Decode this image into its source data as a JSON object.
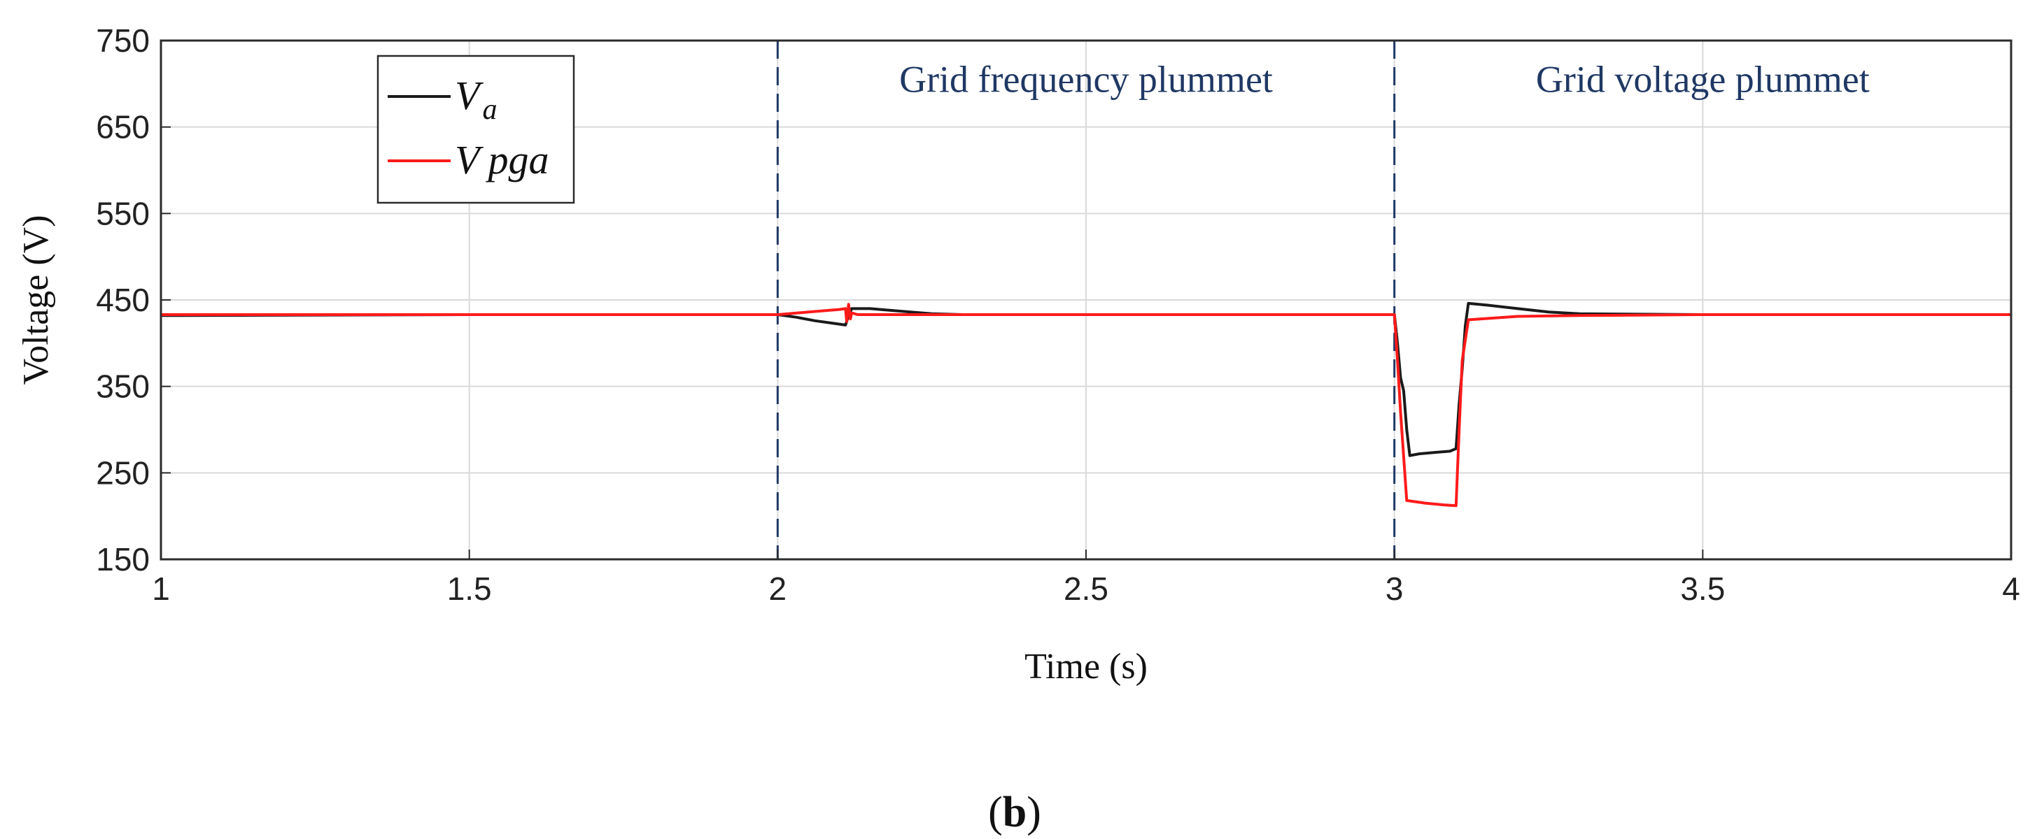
{
  "chart_data": {
    "type": "line",
    "title": "",
    "xlabel": "Time (s)",
    "ylabel": "Voltage (V)",
    "xlim": [
      1,
      4
    ],
    "ylim": [
      150,
      750
    ],
    "xticks": [
      1,
      1.5,
      2,
      2.5,
      3,
      3.5,
      4
    ],
    "xtick_labels": [
      "1",
      "1.5",
      "2",
      "2.5",
      "3",
      "3.5",
      "4"
    ],
    "yticks": [
      150,
      250,
      350,
      450,
      550,
      650,
      750
    ],
    "ytick_labels": [
      "150",
      "250",
      "350",
      "450",
      "550",
      "650",
      "750"
    ],
    "grid": true,
    "legend_position": "top-left",
    "event_lines": [
      2,
      3
    ],
    "annotations": [
      {
        "text": "Grid frequency plummet",
        "x": 2.5,
        "y": 705
      },
      {
        "text": "Grid voltage plummet",
        "x": 3.5,
        "y": 705
      }
    ],
    "series": [
      {
        "name": "V_a",
        "label_main": "V",
        "label_sub": "a",
        "color": "#1a1a1a",
        "points": [
          [
            1.0,
            432
          ],
          [
            1.5,
            433
          ],
          [
            2.0,
            433
          ],
          [
            2.03,
            430
          ],
          [
            2.06,
            426
          ],
          [
            2.09,
            423
          ],
          [
            2.11,
            421
          ],
          [
            2.115,
            432
          ],
          [
            2.12,
            440
          ],
          [
            2.15,
            440
          ],
          [
            2.2,
            437
          ],
          [
            2.25,
            434
          ],
          [
            2.3,
            433
          ],
          [
            2.5,
            433
          ],
          [
            3.0,
            433
          ],
          [
            3.005,
            400
          ],
          [
            3.01,
            360
          ],
          [
            3.015,
            345
          ],
          [
            3.02,
            300
          ],
          [
            3.025,
            270
          ],
          [
            3.04,
            272
          ],
          [
            3.07,
            274
          ],
          [
            3.09,
            275
          ],
          [
            3.1,
            278
          ],
          [
            3.105,
            330
          ],
          [
            3.11,
            370
          ],
          [
            3.115,
            420
          ],
          [
            3.12,
            446
          ],
          [
            3.15,
            444
          ],
          [
            3.2,
            440
          ],
          [
            3.25,
            436
          ],
          [
            3.3,
            434
          ],
          [
            3.5,
            433
          ],
          [
            4.0,
            433
          ]
        ]
      },
      {
        "name": "V_pga",
        "label_main": "V",
        "label_sub": "pga",
        "color": "#ff1a1a",
        "points": [
          [
            1.0,
            433
          ],
          [
            1.5,
            433
          ],
          [
            2.0,
            433
          ],
          [
            2.05,
            436
          ],
          [
            2.1,
            439
          ],
          [
            2.11,
            440
          ],
          [
            2.112,
            425
          ],
          [
            2.115,
            445
          ],
          [
            2.118,
            428
          ],
          [
            2.12,
            435
          ],
          [
            2.13,
            433
          ],
          [
            2.5,
            433
          ],
          [
            3.0,
            433
          ],
          [
            3.005,
            380
          ],
          [
            3.01,
            320
          ],
          [
            3.02,
            218
          ],
          [
            3.05,
            215
          ],
          [
            3.08,
            213
          ],
          [
            3.1,
            212
          ],
          [
            3.105,
            300
          ],
          [
            3.11,
            380
          ],
          [
            3.12,
            427
          ],
          [
            3.2,
            431
          ],
          [
            3.3,
            432
          ],
          [
            3.5,
            433
          ],
          [
            4.0,
            433
          ]
        ]
      }
    ]
  },
  "panel_label": "(b)"
}
